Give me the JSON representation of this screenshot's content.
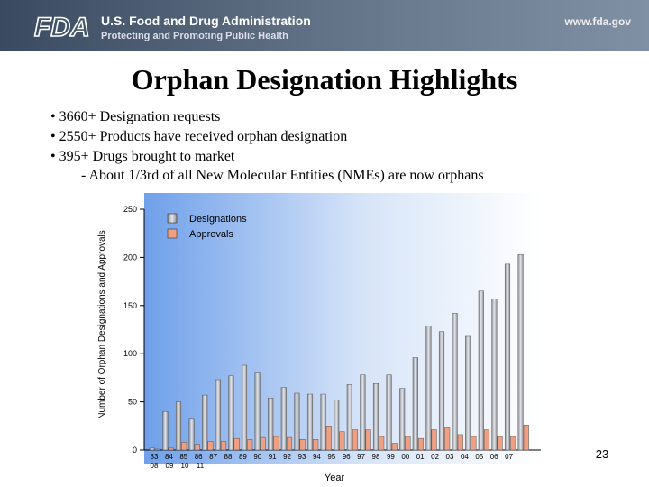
{
  "header": {
    "logo": "FDA",
    "agency": "U.S. Food and Drug Administration",
    "tagline": "Protecting and Promoting Public Health",
    "url": "www.fda.gov"
  },
  "title": "Orphan Designation Highlights",
  "bullets": [
    "• 3660+ Designation requests",
    "• 2550+ Products have received orphan designation",
    "• 395+ Drugs brought to market",
    "- About 1/3rd of all New Molecular Entities (NMEs) are now orphans"
  ],
  "chart_data": {
    "type": "bar",
    "y_label": "Number of Orphan Designations and Approvals",
    "x_label": "Year",
    "categories": [
      "83",
      "84",
      "85",
      "86",
      "87",
      "88",
      "89",
      "90",
      "91",
      "92",
      "93",
      "94",
      "95",
      "96",
      "97",
      "98",
      "99",
      "00",
      "01",
      "02",
      "03",
      "04",
      "05",
      "06",
      "07",
      "08",
      "09",
      "10",
      "11"
    ],
    "series": [
      {
        "name": "Designations",
        "color": "#b4b8c0",
        "values": [
          2,
          40,
          50,
          32,
          57,
          73,
          77,
          88,
          80,
          54,
          65,
          59,
          58,
          58,
          52,
          68,
          78,
          69,
          78,
          64,
          96,
          129,
          123,
          142,
          118,
          165,
          157,
          193,
          203
        ]
      },
      {
        "name": "Approvals",
        "color": "#f0a080",
        "values": [
          1,
          2,
          8,
          6,
          9,
          9,
          12,
          11,
          13,
          14,
          13,
          11,
          11,
          25,
          19,
          21,
          21,
          14,
          7,
          14,
          12,
          21,
          23,
          16,
          14,
          21,
          14,
          14,
          26
        ]
      }
    ],
    "ylim": [
      0,
      250
    ],
    "yticks": [
      0,
      50,
      100,
      150,
      200,
      250
    ]
  },
  "page_number": "23"
}
